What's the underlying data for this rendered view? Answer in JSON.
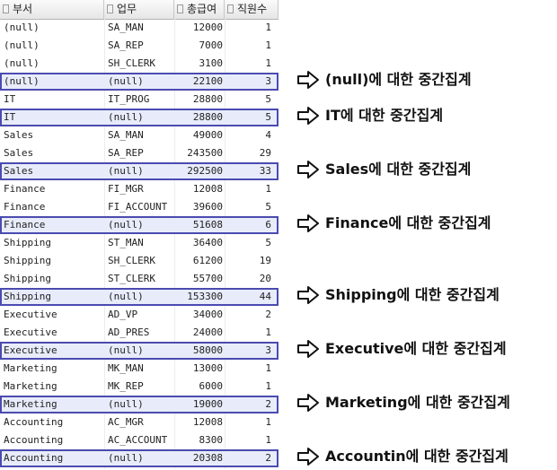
{
  "columns": [
    "부서",
    "업무",
    "총급여",
    "직원수"
  ],
  "rows": [
    {
      "dept": "(null)",
      "job": "SA_MAN",
      "sal": "12000",
      "cnt": "1",
      "sub": false
    },
    {
      "dept": "(null)",
      "job": "SA_REP",
      "sal": "7000",
      "cnt": "1",
      "sub": false
    },
    {
      "dept": "(null)",
      "job": "SH_CLERK",
      "sal": "3100",
      "cnt": "1",
      "sub": false
    },
    {
      "dept": "(null)",
      "job": "(null)",
      "sal": "22100",
      "cnt": "3",
      "sub": true
    },
    {
      "dept": "IT",
      "job": "IT_PROG",
      "sal": "28800",
      "cnt": "5",
      "sub": false
    },
    {
      "dept": "IT",
      "job": "(null)",
      "sal": "28800",
      "cnt": "5",
      "sub": true
    },
    {
      "dept": "Sales",
      "job": "SA_MAN",
      "sal": "49000",
      "cnt": "4",
      "sub": false
    },
    {
      "dept": "Sales",
      "job": "SA_REP",
      "sal": "243500",
      "cnt": "29",
      "sub": false
    },
    {
      "dept": "Sales",
      "job": "(null)",
      "sal": "292500",
      "cnt": "33",
      "sub": true
    },
    {
      "dept": "Finance",
      "job": "FI_MGR",
      "sal": "12008",
      "cnt": "1",
      "sub": false
    },
    {
      "dept": "Finance",
      "job": "FI_ACCOUNT",
      "sal": "39600",
      "cnt": "5",
      "sub": false
    },
    {
      "dept": "Finance",
      "job": "(null)",
      "sal": "51608",
      "cnt": "6",
      "sub": true
    },
    {
      "dept": "Shipping",
      "job": "ST_MAN",
      "sal": "36400",
      "cnt": "5",
      "sub": false
    },
    {
      "dept": "Shipping",
      "job": "SH_CLERK",
      "sal": "61200",
      "cnt": "19",
      "sub": false
    },
    {
      "dept": "Shipping",
      "job": "ST_CLERK",
      "sal": "55700",
      "cnt": "20",
      "sub": false
    },
    {
      "dept": "Shipping",
      "job": "(null)",
      "sal": "153300",
      "cnt": "44",
      "sub": true
    },
    {
      "dept": "Executive",
      "job": "AD_VP",
      "sal": "34000",
      "cnt": "2",
      "sub": false
    },
    {
      "dept": "Executive",
      "job": "AD_PRES",
      "sal": "24000",
      "cnt": "1",
      "sub": false
    },
    {
      "dept": "Executive",
      "job": "(null)",
      "sal": "58000",
      "cnt": "3",
      "sub": true
    },
    {
      "dept": "Marketing",
      "job": "MK_MAN",
      "sal": "13000",
      "cnt": "1",
      "sub": false
    },
    {
      "dept": "Marketing",
      "job": "MK_REP",
      "sal": "6000",
      "cnt": "1",
      "sub": false
    },
    {
      "dept": "Marketing",
      "job": "(null)",
      "sal": "19000",
      "cnt": "2",
      "sub": true
    },
    {
      "dept": "Accounting",
      "job": "AC_MGR",
      "sal": "12008",
      "cnt": "1",
      "sub": false
    },
    {
      "dept": "Accounting",
      "job": "AC_ACCOUNT",
      "sal": "8300",
      "cnt": "1",
      "sub": false
    },
    {
      "dept": "Accounting",
      "job": "(null)",
      "sal": "20308",
      "cnt": "2",
      "sub": true
    }
  ],
  "annotations": [
    "(null)에 대한 중간집계",
    "IT에 대한 중간집계",
    "Sales에 대한 중간집계",
    "Finance에 대한 중간집계",
    "Shipping에 대한 중간집계",
    "Executive에 대한 중간집계",
    "Marketing에 대한 중간집계",
    "Accountin에 대한 중간집계"
  ],
  "colors": {
    "highlight_border": "#4b4bb0"
  }
}
